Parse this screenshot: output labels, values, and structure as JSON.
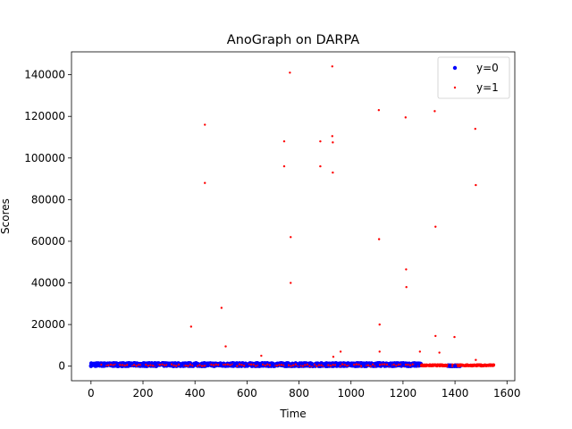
{
  "chart_data": {
    "type": "scatter",
    "title": "AnoGraph on DARPA",
    "xlabel": "Time",
    "ylabel": "Scores",
    "xlim": [
      -75,
      1630
    ],
    "ylim": [
      -7000,
      151000
    ],
    "xticks": [
      0,
      200,
      400,
      600,
      800,
      1000,
      1200,
      1400,
      1600
    ],
    "yticks": [
      0,
      20000,
      40000,
      60000,
      80000,
      100000,
      120000,
      140000
    ],
    "grid": false,
    "legend_position": "top-right",
    "colors": {
      "y0": "#0000ff",
      "y1": "#ff0000"
    },
    "baseline": {
      "description_free_range": true,
      "y0_segments": [
        {
          "x_start": 0,
          "x_end": 1270,
          "y_min": 0,
          "y_max": 1500
        },
        {
          "x_start": 1370,
          "x_end": 1420,
          "y_min": 0,
          "y_max": 400
        }
      ],
      "y1_segments": [
        {
          "x_start": 1270,
          "x_end": 1550,
          "y_min": 0,
          "y_max": 800
        }
      ]
    },
    "series": [
      {
        "name": "y=0",
        "x": [
          0,
          50,
          100,
          150,
          200,
          250,
          300,
          350,
          400,
          450,
          500,
          550,
          600,
          650,
          700,
          750,
          800,
          850,
          900,
          950,
          1000,
          1050,
          1100,
          1150,
          1200,
          1250,
          1380,
          1400
        ],
        "y": [
          200,
          300,
          250,
          400,
          600,
          800,
          500,
          700,
          600,
          400,
          300,
          200,
          300,
          500,
          700,
          900,
          1000,
          900,
          800,
          700,
          500,
          400,
          600,
          800,
          700,
          500,
          200,
          100
        ]
      },
      {
        "name": "y=1",
        "x": [
          438,
          438,
          385,
          502,
          518,
          655,
          743,
          743,
          765,
          768,
          768,
          882,
          882,
          928,
          928,
          930,
          930,
          932,
          960,
          1107,
          1108,
          1110,
          1110,
          1210,
          1212,
          1213,
          1265,
          1322,
          1325,
          1325,
          1340,
          1398,
          1478,
          1480,
          1480
        ],
        "y": [
          116000,
          88000,
          19000,
          28000,
          9500,
          5000,
          108000,
          96000,
          141000,
          62000,
          40000,
          108000,
          96000,
          144000,
          110500,
          107500,
          93000,
          4500,
          7000,
          123000,
          61000,
          20000,
          7000,
          119500,
          46500,
          38000,
          7000,
          122500,
          67000,
          14500,
          6500,
          14000,
          114000,
          87000,
          3000
        ]
      }
    ]
  }
}
